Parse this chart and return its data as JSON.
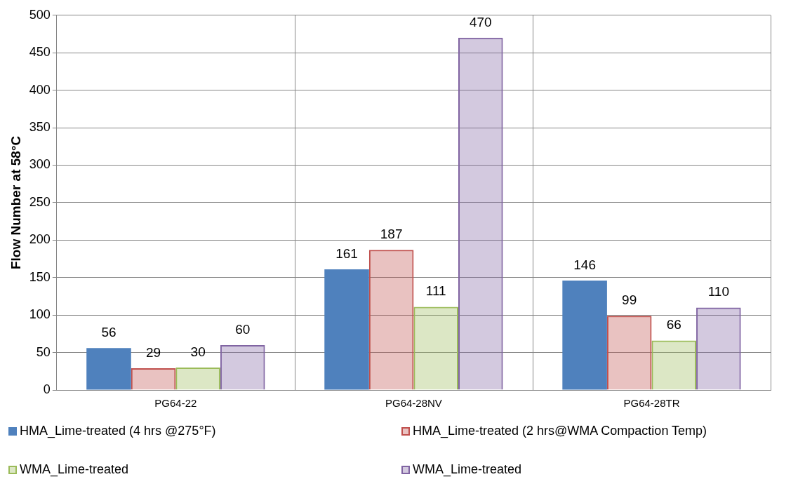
{
  "chart_data": {
    "type": "bar",
    "ylabel": "Flow Number at 58°C",
    "categories": [
      "PG64-22",
      "PG64-28NV",
      "PG64-28TR"
    ],
    "series": [
      {
        "name": "HMA_Lime-treated (4 hrs @275°F)",
        "color": "#4f81bd",
        "values": [
          56,
          161,
          146
        ]
      },
      {
        "name": "HMA_Lime-treated (2 hrs@WMA Compaction Temp)",
        "color": "#c0504d",
        "values": [
          29,
          187,
          99
        ]
      },
      {
        "name": "WMA_Lime-treated",
        "color": "#9bbb59",
        "values": [
          30,
          111,
          66
        ]
      },
      {
        "name": "WMA_Lime-treated",
        "color": "#8064a2",
        "values": [
          60,
          470,
          110
        ]
      }
    ],
    "ylim": [
      0,
      500
    ],
    "yticks": [
      0,
      50,
      100,
      150,
      200,
      250,
      300,
      350,
      400,
      450,
      500
    ],
    "grid": true,
    "legend": "bottom",
    "data_labels": true
  }
}
